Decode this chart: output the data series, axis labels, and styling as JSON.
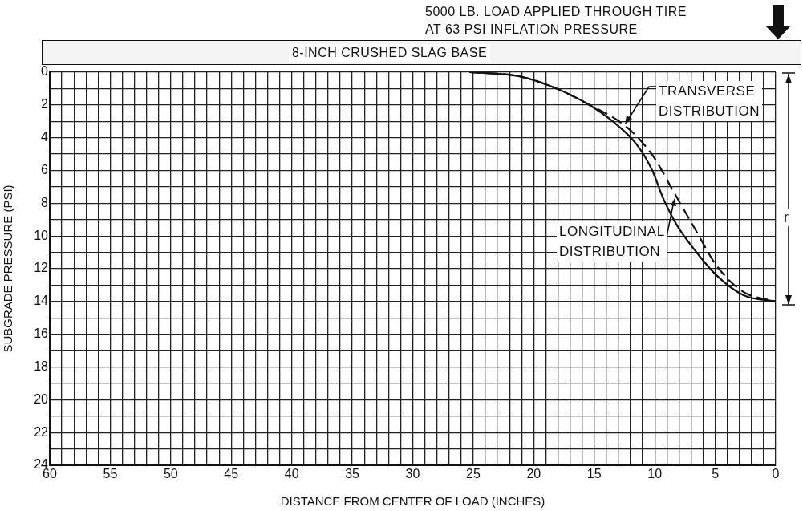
{
  "chart_data": {
    "type": "line",
    "xlabel": "DISTANCE FROM CENTER OF LOAD (INCHES)",
    "ylabel": "SUBGRADE PRESSURE (PSI)",
    "annotations": [
      "5000 LB. LOAD APPLIED THROUGH TIRE\nAT 63 PSI INFLATION PRESSURE",
      "8-INCH CRUSHED SLAG BASE",
      "r"
    ],
    "xlim": [
      60,
      0
    ],
    "ylim": [
      24,
      0
    ],
    "xticks": [
      60,
      {
        "value": 59,
        "label": null
      },
      {
        "value": 58,
        "label": null
      },
      {
        "value": 57,
        "label": null
      },
      {
        "value": 56,
        "label": null
      },
      55,
      {
        "value": 54,
        "label": null
      },
      {
        "value": 53,
        "label": null
      },
      {
        "value": 52,
        "label": null
      },
      {
        "value": 51,
        "label": null
      },
      50,
      {
        "value": 49,
        "label": null
      },
      {
        "value": 48,
        "label": null
      },
      {
        "value": 47,
        "label": null
      },
      {
        "value": 46,
        "label": null
      },
      45,
      {
        "value": 44,
        "label": null
      },
      {
        "value": 43,
        "label": null
      },
      {
        "value": 42,
        "label": null
      },
      {
        "value": 41,
        "label": null
      },
      40,
      {
        "value": 39,
        "label": null
      },
      {
        "value": 38,
        "label": null
      },
      {
        "value": 37,
        "label": null
      },
      {
        "value": 36,
        "label": null
      },
      35,
      {
        "value": 34,
        "label": null
      },
      {
        "value": 33,
        "label": null
      },
      {
        "value": 32,
        "label": null
      },
      {
        "value": 31,
        "label": null
      },
      30,
      {
        "value": 29,
        "label": null
      },
      {
        "value": 28,
        "label": null
      },
      {
        "value": 27,
        "label": null
      },
      {
        "value": 26,
        "label": null
      },
      25,
      {
        "value": 24,
        "label": null
      },
      {
        "value": 23,
        "label": null
      },
      {
        "value": 22,
        "label": null
      },
      {
        "value": 21,
        "label": null
      },
      20,
      {
        "value": 19,
        "label": null
      },
      {
        "value": 18,
        "label": null
      },
      {
        "value": 17,
        "label": null
      },
      {
        "value": 16,
        "label": null
      },
      15,
      {
        "value": 14,
        "label": null
      },
      {
        "value": 13,
        "label": null
      },
      {
        "value": 12,
        "label": null
      },
      {
        "value": 11,
        "label": null
      },
      10,
      {
        "value": 9,
        "label": null
      },
      {
        "value": 8,
        "label": null
      },
      {
        "value": 7,
        "label": null
      },
      {
        "value": 6,
        "label": null
      },
      5,
      {
        "value": 4,
        "label": null
      },
      {
        "value": 3,
        "label": null
      },
      {
        "value": 2,
        "label": null
      },
      {
        "value": 1,
        "label": null
      },
      0
    ],
    "yticks": [
      0,
      {
        "value": 1,
        "label": null
      },
      2,
      {
        "value": 3,
        "label": null
      },
      4,
      {
        "value": 5,
        "label": null
      },
      6,
      {
        "value": 7,
        "label": null
      },
      8,
      {
        "value": 9,
        "label": null
      },
      10,
      {
        "value": 11,
        "label": null
      },
      12,
      {
        "value": 13,
        "label": null
      },
      14,
      {
        "value": 15,
        "label": null
      },
      16,
      {
        "value": 17,
        "label": null
      },
      18,
      {
        "value": 19,
        "label": null
      },
      20,
      {
        "value": 21,
        "label": null
      },
      22,
      {
        "value": 23,
        "label": null
      },
      24
    ],
    "grid": true,
    "legend": false,
    "marker": "none",
    "series": [
      {
        "name": "TRANSVERSE\nDISTRIBUTION",
        "color": "#111111",
        "line_style": "dashed",
        "x": [
          25.3,
          21.2,
          18.1,
          15.5,
          12.4,
          10.2,
          8.4,
          6.65,
          4.9,
          2.7,
          0
        ],
        "values": [
          0,
          0.25,
          1,
          1.96,
          3.3,
          5.05,
          7.35,
          9.6,
          11.8,
          13.4,
          14
        ]
      },
      {
        "name": "LONGITUDINAL\nDISTRIBUTION",
        "color": "#111111",
        "line_style": "solid",
        "x": [
          25.3,
          21.2,
          18.1,
          15.5,
          13.3,
          11.5,
          10.2,
          9.3,
          8.2,
          6.65,
          4.9,
          2.7,
          0
        ],
        "values": [
          0,
          0.25,
          1,
          1.96,
          3.1,
          4.4,
          6,
          7.7,
          9.3,
          10.9,
          12.4,
          13.6,
          14
        ]
      }
    ]
  }
}
